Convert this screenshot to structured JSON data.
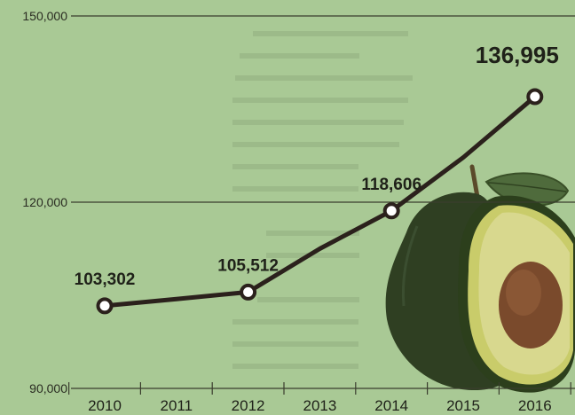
{
  "chart_data": {
    "type": "line",
    "title": "",
    "xlabel": "",
    "ylabel": "",
    "x": [
      "2010",
      "2011",
      "2012",
      "2013",
      "2014",
      "2015",
      "2016"
    ],
    "series": [
      {
        "values": [
          103302,
          104400,
          105512,
          112500,
          118606,
          127200,
          136995
        ]
      }
    ],
    "point_labels": [
      {
        "index": 0,
        "text": "103,302"
      },
      {
        "index": 2,
        "text": "105,512"
      },
      {
        "index": 4,
        "text": "118,606"
      },
      {
        "index": 6,
        "text": "136,995"
      }
    ],
    "marker_indices": [
      0,
      2,
      4,
      6
    ],
    "ylim": [
      90000,
      150000
    ],
    "yticks": [
      {
        "value": 90000,
        "label": "90,000"
      },
      {
        "value": 120000,
        "label": "120,000"
      },
      {
        "value": 150000,
        "label": "150,000"
      }
    ],
    "grid": true,
    "legend": "none",
    "colors": {
      "background": "#a9c995",
      "line": "#2b211c",
      "marker_fill": "#ffffff",
      "text": "#1f2119"
    }
  },
  "illustration": {
    "icon": "avocado-icon"
  }
}
